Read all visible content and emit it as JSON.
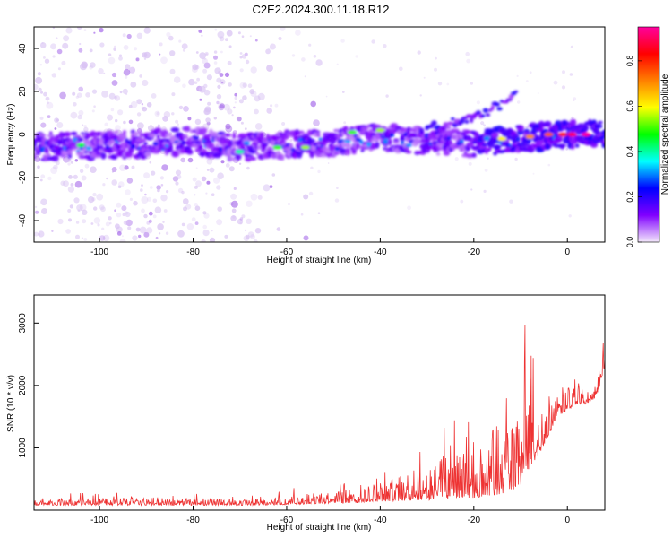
{
  "title": "C2E2.2024.300.11.18.R12",
  "chart_data": [
    {
      "type": "heatmap",
      "xlabel": "Height of straight line (km)",
      "ylabel": "Frequency (Hz)",
      "xlim": [
        -114,
        8
      ],
      "ylim": [
        -50,
        50
      ],
      "xticks": [
        -100,
        -80,
        -60,
        -40,
        -20,
        0
      ],
      "yticks": [
        -40,
        -20,
        0,
        20,
        40
      ],
      "colorbar": {
        "label": "Normalized spectral amplitude",
        "range": [
          0,
          0.95
        ],
        "ticks": [
          0.0,
          0.2,
          0.4,
          0.6,
          0.8
        ],
        "colormap": [
          "#f4e9fb",
          "#8000ff",
          "#0000ff",
          "#00ffff",
          "#00ff00",
          "#ffff00",
          "#ff8000",
          "#ff0000",
          "#ff00a0"
        ]
      },
      "band_ridge": {
        "description_units": "frequency (Hz) of the main band centre vs height (km)",
        "x": [
          -114,
          -100,
          -90,
          -80,
          -70,
          -60,
          -50,
          -40,
          -30,
          -20,
          -10,
          0,
          7
        ],
        "y": [
          -6,
          -5,
          -4.5,
          -3,
          -6,
          -5,
          -4,
          -1,
          -3,
          -4,
          -2,
          0,
          0.5
        ]
      },
      "secondary_branch": {
        "x": [
          -30,
          -26,
          -22,
          -18,
          -14,
          -11
        ],
        "y": [
          3,
          5,
          7,
          10,
          14,
          19
        ]
      },
      "hot_spots": [
        {
          "x": -104,
          "y": -5,
          "level": 0.45
        },
        {
          "x": -70,
          "y": -8,
          "level": 0.4
        },
        {
          "x": -62,
          "y": -6,
          "level": 0.5
        },
        {
          "x": -56,
          "y": -6,
          "level": 0.55
        },
        {
          "x": -46,
          "y": 1,
          "level": 0.5
        },
        {
          "x": -40,
          "y": 2,
          "level": 0.55
        },
        {
          "x": -14,
          "y": -2,
          "level": 0.6
        },
        {
          "x": -8,
          "y": -1,
          "level": 0.7
        },
        {
          "x": -4,
          "y": 0,
          "level": 0.75
        },
        {
          "x": -1,
          "y": 0,
          "level": 0.8
        },
        {
          "x": 1,
          "y": 0,
          "level": 0.9
        },
        {
          "x": 4,
          "y": 0,
          "level": 0.95
        }
      ]
    },
    {
      "type": "line",
      "xlabel": "Height of straight line (km)",
      "ylabel": "SNR (10 * v/v)",
      "xlim": [
        -114,
        8
      ],
      "ylim": [
        0,
        3450
      ],
      "xticks": [
        -100,
        -80,
        -60,
        -40,
        -20,
        0
      ],
      "yticks": [
        1000,
        2000,
        3000
      ],
      "color": "#ee3333",
      "series": [
        {
          "envelope": {
            "x": [
              -114,
              -100,
              -90,
              -80,
              -70,
              -65,
              -60,
              -55,
              -50,
              -45,
              -40,
              -35,
              -30,
              -25,
              -20,
              -15,
              -12,
              -10,
              -8,
              -6,
              -4,
              -2,
              0,
              2,
              4,
              6,
              8
            ],
            "low": [
              80,
              80,
              80,
              80,
              80,
              80,
              90,
              100,
              110,
              120,
              140,
              150,
              160,
              180,
              200,
              250,
              300,
              400,
              700,
              900,
              1200,
              1500,
              1600,
              1700,
              1700,
              1800,
              2200
            ],
            "high": [
              230,
              300,
              320,
              280,
              260,
              300,
              350,
              400,
              450,
              550,
              700,
              900,
              1200,
              1500,
              1800,
              2300,
              2600,
              2800,
              3300,
              1700,
              2000,
              2100,
              2300,
              2400,
              2000,
              2300,
              2900
            ]
          }
        }
      ]
    }
  ]
}
